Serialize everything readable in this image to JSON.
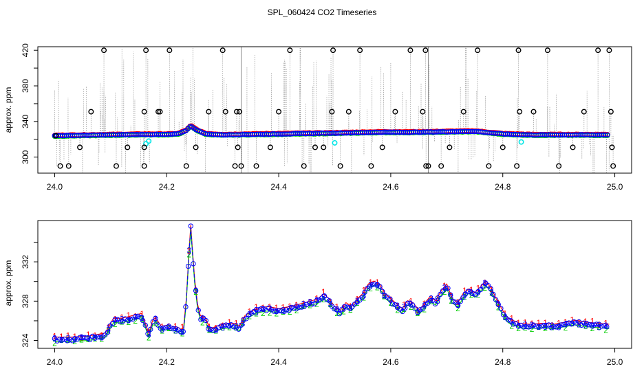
{
  "title": "SPL_060424  CO2 Timeseries",
  "colors": {
    "series1": "#ff0000",
    "series2": "#00cd00",
    "series3": "#0000ff",
    "cyan": "#00e5e5",
    "outlier": "#000000",
    "spike": "#a0a0a0",
    "background": "#ffffff"
  },
  "chart_data": [
    {
      "type": "scatter",
      "id": "top",
      "ylabel": "approx. ppm",
      "xlim": [
        23.97,
        25.03
      ],
      "ylim": [
        282,
        424
      ],
      "xticks": [
        24.0,
        24.2,
        24.4,
        24.6,
        24.8,
        25.0
      ],
      "xtick_labels": [
        "24.0",
        "24.2",
        "24.4",
        "24.6",
        "24.8",
        "25.0"
      ],
      "yticks": [
        300,
        320,
        340,
        360,
        380,
        400,
        420
      ],
      "ytick_labels": [
        "300",
        "",
        "340",
        "",
        "380",
        "",
        "420"
      ],
      "vlines": [
        24.333,
        24.667
      ],
      "baseline": [
        [
          24.0,
          324
        ],
        [
          24.1,
          325
        ],
        [
          24.16,
          325.5
        ],
        [
          24.2,
          325.5
        ],
        [
          24.22,
          326
        ],
        [
          24.235,
          330
        ],
        [
          24.243,
          335
        ],
        [
          24.255,
          330
        ],
        [
          24.27,
          326
        ],
        [
          24.3,
          325
        ],
        [
          24.34,
          325.5
        ],
        [
          24.4,
          326
        ],
        [
          24.5,
          327
        ],
        [
          24.58,
          328
        ],
        [
          24.65,
          328
        ],
        [
          24.7,
          328.5
        ],
        [
          24.75,
          329
        ],
        [
          24.8,
          326
        ],
        [
          24.85,
          325
        ],
        [
          24.9,
          325
        ],
        [
          24.99,
          325
        ]
      ],
      "cyan_points": [
        [
          24.163,
          315
        ],
        [
          24.168,
          318
        ],
        [
          24.5,
          316
        ],
        [
          24.833,
          317
        ]
      ],
      "outliers": [
        [
          24.002,
          324
        ],
        [
          24.01,
          290
        ],
        [
          24.025,
          290
        ],
        [
          24.045,
          311
        ],
        [
          24.065,
          351
        ],
        [
          24.088,
          420
        ],
        [
          24.11,
          290
        ],
        [
          24.13,
          311
        ],
        [
          24.16,
          290
        ],
        [
          24.16,
          311
        ],
        [
          24.16,
          351
        ],
        [
          24.163,
          420
        ],
        [
          24.185,
          351
        ],
        [
          24.188,
          351
        ],
        [
          24.205,
          420
        ],
        [
          24.235,
          290
        ],
        [
          24.252,
          311
        ],
        [
          24.275,
          351
        ],
        [
          24.3,
          420
        ],
        [
          24.305,
          351
        ],
        [
          24.322,
          290
        ],
        [
          24.325,
          351
        ],
        [
          24.327,
          311
        ],
        [
          24.33,
          351
        ],
        [
          24.333,
          290
        ],
        [
          24.36,
          290
        ],
        [
          24.385,
          311
        ],
        [
          24.4,
          351
        ],
        [
          24.42,
          420
        ],
        [
          24.445,
          290
        ],
        [
          24.465,
          311
        ],
        [
          24.48,
          311
        ],
        [
          24.495,
          351
        ],
        [
          24.497,
          420
        ],
        [
          24.51,
          290
        ],
        [
          24.525,
          351
        ],
        [
          24.545,
          420
        ],
        [
          24.565,
          290
        ],
        [
          24.585,
          311
        ],
        [
          24.608,
          351
        ],
        [
          24.635,
          420
        ],
        [
          24.657,
          351
        ],
        [
          24.662,
          420
        ],
        [
          24.663,
          290
        ],
        [
          24.667,
          290
        ],
        [
          24.69,
          290
        ],
        [
          24.705,
          311
        ],
        [
          24.73,
          351
        ],
        [
          24.755,
          420
        ],
        [
          24.775,
          290
        ],
        [
          24.8,
          311
        ],
        [
          24.825,
          290
        ],
        [
          24.828,
          420
        ],
        [
          24.83,
          351
        ],
        [
          24.855,
          351
        ],
        [
          24.88,
          420
        ],
        [
          24.9,
          290
        ],
        [
          24.925,
          311
        ],
        [
          24.945,
          351
        ],
        [
          24.97,
          420
        ],
        [
          24.99,
          420
        ],
        [
          24.993,
          351
        ],
        [
          24.995,
          311
        ],
        [
          24.997,
          290
        ]
      ]
    },
    {
      "type": "line",
      "id": "bottom",
      "ylabel": "approx. ppm",
      "xlim": [
        23.97,
        25.03
      ],
      "ylim": [
        323.2,
        336.2
      ],
      "xticks": [
        24.0,
        24.2,
        24.4,
        24.6,
        24.8,
        25.0
      ],
      "xtick_labels": [
        "24.0",
        "24.2",
        "24.4",
        "24.6",
        "24.8",
        "25.0"
      ],
      "yticks": [
        324,
        326,
        328,
        330,
        332,
        334
      ],
      "ytick_labels": [
        "324",
        "",
        "328",
        "",
        "332",
        ""
      ],
      "series": [
        {
          "name": "1",
          "marker": "1",
          "offset": 0.25
        },
        {
          "name": "2",
          "marker": "2",
          "offset": -0.2
        },
        {
          "name": "3",
          "marker": "3",
          "offset": 0.0
        }
      ],
      "points": [
        [
          24.0,
          324.1
        ],
        [
          24.03,
          324.1
        ],
        [
          24.06,
          324.2
        ],
        [
          24.09,
          324.5
        ],
        [
          24.1,
          325.5
        ],
        [
          24.105,
          326
        ],
        [
          24.12,
          326
        ],
        [
          24.14,
          326.3
        ],
        [
          24.155,
          326.5
        ],
        [
          24.162,
          325.5
        ],
        [
          24.168,
          324.5
        ],
        [
          24.175,
          325.8
        ],
        [
          24.18,
          326.1
        ],
        [
          24.19,
          325.2
        ],
        [
          24.2,
          325.3
        ],
        [
          24.22,
          325.1
        ],
        [
          24.225,
          324.9
        ],
        [
          24.23,
          325
        ],
        [
          24.235,
          328
        ],
        [
          24.24,
          333
        ],
        [
          24.243,
          335.5
        ],
        [
          24.246,
          333
        ],
        [
          24.25,
          330
        ],
        [
          24.255,
          327.5
        ],
        [
          24.26,
          326.3
        ],
        [
          24.27,
          326
        ],
        [
          24.275,
          325.2
        ],
        [
          24.28,
          325
        ],
        [
          24.3,
          325.4
        ],
        [
          24.32,
          325.5
        ],
        [
          24.33,
          325.2
        ],
        [
          24.34,
          326.3
        ],
        [
          24.36,
          327
        ],
        [
          24.38,
          327.2
        ],
        [
          24.4,
          327
        ],
        [
          24.42,
          327.2
        ],
        [
          24.44,
          327.5
        ],
        [
          24.46,
          327.8
        ],
        [
          24.47,
          328
        ],
        [
          24.48,
          328.5
        ],
        [
          24.49,
          328
        ],
        [
          24.5,
          327.2
        ],
        [
          24.51,
          326.8
        ],
        [
          24.52,
          327.6
        ],
        [
          24.53,
          327.2
        ],
        [
          24.54,
          328
        ],
        [
          24.55,
          328.5
        ],
        [
          24.56,
          329.5
        ],
        [
          24.57,
          329.8
        ],
        [
          24.58,
          329.5
        ],
        [
          24.59,
          328.5
        ],
        [
          24.6,
          328
        ],
        [
          24.61,
          327.5
        ],
        [
          24.62,
          327
        ],
        [
          24.63,
          327.8
        ],
        [
          24.64,
          327.6
        ],
        [
          24.65,
          326.8
        ],
        [
          24.66,
          327.5
        ],
        [
          24.67,
          328.2
        ],
        [
          24.68,
          327.8
        ],
        [
          24.69,
          328.8
        ],
        [
          24.7,
          329.5
        ],
        [
          24.71,
          328
        ],
        [
          24.72,
          327.6
        ],
        [
          24.73,
          328.6
        ],
        [
          24.74,
          329
        ],
        [
          24.75,
          328.6
        ],
        [
          24.76,
          329.2
        ],
        [
          24.77,
          329.8
        ],
        [
          24.78,
          329
        ],
        [
          24.79,
          327.8
        ],
        [
          24.8,
          326.8
        ],
        [
          24.81,
          326
        ],
        [
          24.83,
          325.5
        ],
        [
          24.85,
          325.4
        ],
        [
          24.87,
          325.5
        ],
        [
          24.89,
          325.4
        ],
        [
          24.91,
          325.6
        ],
        [
          24.93,
          325.8
        ],
        [
          24.95,
          325.6
        ],
        [
          24.97,
          325.5
        ],
        [
          24.99,
          325.4
        ]
      ]
    }
  ]
}
